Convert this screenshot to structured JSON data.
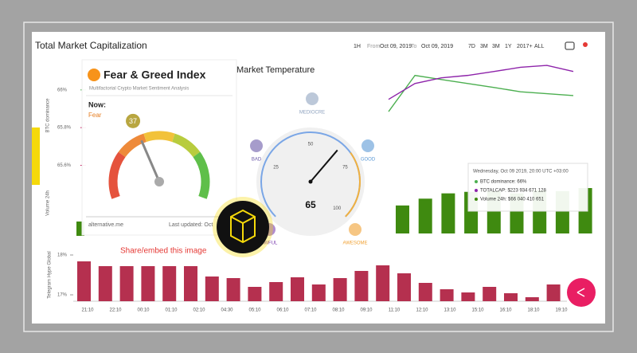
{
  "header": {
    "title": "Total Market Capitalization",
    "interval": "1H",
    "from_label": "From",
    "from": "Oct 09, 2019",
    "to_label": "To",
    "to": "Oct 09, 2019",
    "ranges": [
      "7D",
      "3M",
      "3M",
      "1Y",
      "2017+",
      "ALL"
    ]
  },
  "price_chart": {
    "ylabel": "BTC dominance",
    "ylim": [
      65.23,
      66.16
    ],
    "yticks": [
      {
        "value": 66,
        "label": "66%"
      },
      {
        "value": 65.8,
        "label": "65.8%"
      },
      {
        "value": 65.6,
        "label": "65.6%"
      }
    ],
    "series": [
      {
        "name": "BTC dominance",
        "color": "#4caf50",
        "values": [
          65.885,
          66.077,
          66.055,
          66.034,
          66.013,
          65.99,
          65.98,
          65.97
        ]
      },
      {
        "name": "TOTALCAP",
        "color": "#8e24aa",
        "values": [
          65.95,
          66.034,
          66.064,
          66.077,
          66.098,
          66.12,
          66.13,
          66.098
        ]
      }
    ]
  },
  "volume_chart": {
    "ylabel": "Volume 24h",
    "color": "#3f8a10",
    "ylim": [
      0,
      100
    ],
    "values": [
      37,
      46,
      53,
      55,
      56,
      53,
      57,
      56,
      60
    ]
  },
  "tooltip": {
    "date": "Wednesday, Oct 09 2019, 20:00 UTC +03:00",
    "rows": [
      {
        "text": "BTC dominance: 66%",
        "color": "#4caf50"
      },
      {
        "text": "TOTALCAP: $223 934 671 128",
        "color": "#8e24aa"
      },
      {
        "text": "Volume 24h: $66 040 410 651",
        "color": "#3f8a10"
      }
    ]
  },
  "hype_chart": {
    "ylabel": "Telegram Hype Global",
    "color": "#b5304f",
    "ylim": [
      16.84,
      18.2
    ],
    "yticks": [
      {
        "value": 18,
        "label": "18%"
      },
      {
        "value": 17,
        "label": "17%"
      }
    ],
    "values": [
      17.84,
      17.72,
      17.72,
      17.72,
      17.72,
      17.72,
      17.46,
      17.42,
      17.2,
      17.32,
      17.44,
      17.26,
      17.42,
      17.6,
      17.74,
      17.54,
      17.3,
      17.14,
      17.06,
      17.2,
      17.04,
      16.94,
      17.26
    ],
    "xlabels": [
      "21:10",
      "22:10",
      "00:10",
      "01:10",
      "02:10",
      "04:30",
      "05:10",
      "06:10",
      "07:10",
      "08:10",
      "09:10",
      "11:10",
      "12:10",
      "13:10",
      "15:10",
      "16:10",
      "18:10",
      "19:10"
    ]
  },
  "fear_greed": {
    "title": "Fear & Greed Index",
    "subtitle": "Multifactorial Crypto Market Sentiment Analysis",
    "now_label": "Now:",
    "classification": "Fear",
    "value": 37,
    "lim": [
      0,
      100
    ],
    "source": "alternative.me",
    "updated": "Last updated: Oct"
  },
  "temperature": {
    "title": "Market Temperature",
    "value": 65,
    "lim": [
      0,
      100
    ],
    "ticks": [
      25,
      50,
      75,
      100
    ],
    "levels": [
      {
        "label": "MEDIOCRE",
        "color": "#8fa3bf"
      },
      {
        "label": "BAD",
        "color": "#6b5aa8"
      },
      {
        "label": "GOOD",
        "color": "#5c9ad6"
      },
      {
        "label": "AWFUL",
        "color": "#7b3fb0"
      },
      {
        "label": "AWESOME",
        "color": "#f0a030"
      }
    ]
  },
  "share": {
    "text": "Share/embed this image"
  }
}
